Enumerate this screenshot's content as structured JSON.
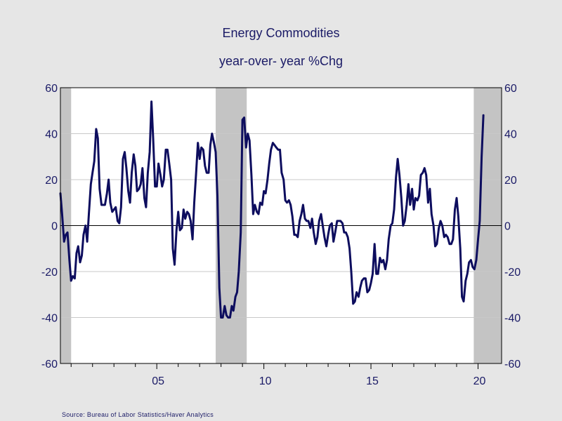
{
  "chart_data": {
    "type": "line",
    "title": "Energy Commodities",
    "subtitle": "year-over- year %Chg",
    "source": "Source:  Bureau of Labor Statistics/Haver Analytics",
    "xlabel": "",
    "ylabel": "",
    "ylim": [
      -60,
      60
    ],
    "xlim": [
      2000.5,
      2021.1
    ],
    "yticks": [
      60,
      40,
      20,
      0,
      -20,
      -40,
      -60
    ],
    "ytick_labels": [
      "60",
      "40",
      "20",
      "0",
      "-20",
      "-40",
      "-60"
    ],
    "xtick_labels": [
      {
        "x": 2005,
        "label": "05"
      },
      {
        "x": 2010,
        "label": "10"
      },
      {
        "x": 2015,
        "label": "15"
      },
      {
        "x": 2020,
        "label": "20"
      }
    ],
    "grid": true,
    "recessions": [
      [
        2000.5,
        2001.0
      ],
      [
        2007.75,
        2009.2
      ],
      [
        2019.8,
        2021.1
      ]
    ],
    "colors": {
      "line": "#0d0d5e",
      "recession": "#c4c4c4",
      "text": "#1a1a66",
      "grid": "#c8c8c8",
      "plot_bg": "#ffffff",
      "page_bg": "#e6e6e6"
    },
    "series": [
      {
        "name": "Energy Commodities",
        "points": [
          [
            2000.5,
            14
          ],
          [
            2000.58,
            5
          ],
          [
            2000.67,
            -7
          ],
          [
            2000.75,
            -4
          ],
          [
            2000.83,
            -3
          ],
          [
            2000.92,
            -15
          ],
          [
            2001.0,
            -24
          ],
          [
            2001.08,
            -22
          ],
          [
            2001.17,
            -23
          ],
          [
            2001.25,
            -12
          ],
          [
            2001.33,
            -9
          ],
          [
            2001.42,
            -16
          ],
          [
            2001.5,
            -13
          ],
          [
            2001.58,
            -4
          ],
          [
            2001.67,
            0
          ],
          [
            2001.75,
            -7
          ],
          [
            2001.83,
            5
          ],
          [
            2001.92,
            18
          ],
          [
            2002.0,
            23
          ],
          [
            2002.08,
            28
          ],
          [
            2002.17,
            42
          ],
          [
            2002.25,
            38
          ],
          [
            2002.33,
            16
          ],
          [
            2002.42,
            9
          ],
          [
            2002.5,
            9
          ],
          [
            2002.58,
            9
          ],
          [
            2002.67,
            14
          ],
          [
            2002.75,
            20
          ],
          [
            2002.83,
            10
          ],
          [
            2002.92,
            6
          ],
          [
            2003.0,
            7
          ],
          [
            2003.08,
            8
          ],
          [
            2003.17,
            2
          ],
          [
            2003.25,
            1
          ],
          [
            2003.33,
            8
          ],
          [
            2003.42,
            29
          ],
          [
            2003.5,
            32
          ],
          [
            2003.58,
            25
          ],
          [
            2003.67,
            15
          ],
          [
            2003.75,
            10
          ],
          [
            2003.83,
            23
          ],
          [
            2003.92,
            31
          ],
          [
            2004.0,
            26
          ],
          [
            2004.08,
            15
          ],
          [
            2004.17,
            16
          ],
          [
            2004.25,
            18
          ],
          [
            2004.33,
            25
          ],
          [
            2004.42,
            12
          ],
          [
            2004.5,
            8
          ],
          [
            2004.58,
            23
          ],
          [
            2004.67,
            32
          ],
          [
            2004.75,
            54
          ],
          [
            2004.83,
            38
          ],
          [
            2004.92,
            17
          ],
          [
            2005.0,
            17
          ],
          [
            2005.08,
            27
          ],
          [
            2005.17,
            22
          ],
          [
            2005.25,
            17
          ],
          [
            2005.33,
            20
          ],
          [
            2005.42,
            33
          ],
          [
            2005.5,
            33
          ],
          [
            2005.58,
            27
          ],
          [
            2005.67,
            20
          ],
          [
            2005.75,
            -10
          ],
          [
            2005.83,
            -17
          ],
          [
            2005.92,
            -2
          ],
          [
            2006.0,
            6
          ],
          [
            2006.08,
            -2
          ],
          [
            2006.17,
            -1
          ],
          [
            2006.25,
            7
          ],
          [
            2006.33,
            3
          ],
          [
            2006.42,
            6
          ],
          [
            2006.5,
            5
          ],
          [
            2006.58,
            2
          ],
          [
            2006.67,
            -6
          ],
          [
            2006.75,
            10
          ],
          [
            2006.83,
            22
          ],
          [
            2006.92,
            36
          ],
          [
            2007.0,
            29
          ],
          [
            2007.08,
            34
          ],
          [
            2007.17,
            33
          ],
          [
            2007.25,
            26
          ],
          [
            2007.33,
            23
          ],
          [
            2007.42,
            23
          ],
          [
            2007.5,
            35
          ],
          [
            2007.58,
            40
          ],
          [
            2007.67,
            36
          ],
          [
            2007.75,
            32
          ],
          [
            2007.83,
            13
          ],
          [
            2007.92,
            -27
          ],
          [
            2008.0,
            -40
          ],
          [
            2008.08,
            -40
          ],
          [
            2008.17,
            -35
          ],
          [
            2008.25,
            -39
          ],
          [
            2008.33,
            -40
          ],
          [
            2008.42,
            -40
          ],
          [
            2008.5,
            -35
          ],
          [
            2008.58,
            -37
          ],
          [
            2008.67,
            -31
          ],
          [
            2008.75,
            -29
          ],
          [
            2008.83,
            -20
          ],
          [
            2008.92,
            -3
          ],
          [
            2009.0,
            46
          ],
          [
            2009.08,
            47
          ],
          [
            2009.17,
            34
          ],
          [
            2009.25,
            40
          ],
          [
            2009.33,
            37
          ],
          [
            2009.42,
            22
          ],
          [
            2009.5,
            5
          ],
          [
            2009.58,
            9
          ],
          [
            2009.67,
            6
          ],
          [
            2009.75,
            5
          ],
          [
            2009.83,
            10
          ],
          [
            2009.92,
            9
          ],
          [
            2010.0,
            15
          ],
          [
            2010.08,
            14
          ],
          [
            2010.17,
            20
          ],
          [
            2010.25,
            27
          ],
          [
            2010.33,
            33
          ],
          [
            2010.42,
            36
          ],
          [
            2010.5,
            35
          ],
          [
            2010.58,
            34
          ],
          [
            2010.67,
            33
          ],
          [
            2010.75,
            33
          ],
          [
            2010.83,
            23
          ],
          [
            2010.92,
            20
          ],
          [
            2011.0,
            11
          ],
          [
            2011.08,
            10
          ],
          [
            2011.17,
            11
          ],
          [
            2011.25,
            9
          ],
          [
            2011.33,
            4
          ],
          [
            2011.42,
            -4
          ],
          [
            2011.5,
            -4
          ],
          [
            2011.58,
            -5
          ],
          [
            2011.67,
            2
          ],
          [
            2011.75,
            5
          ],
          [
            2011.83,
            9
          ],
          [
            2011.92,
            3
          ],
          [
            2012.0,
            2
          ],
          [
            2012.08,
            2
          ],
          [
            2012.17,
            -1
          ],
          [
            2012.25,
            3
          ],
          [
            2012.33,
            -3
          ],
          [
            2012.42,
            -8
          ],
          [
            2012.5,
            -5
          ],
          [
            2012.58,
            2
          ],
          [
            2012.67,
            5
          ],
          [
            2012.75,
            0
          ],
          [
            2012.83,
            -5
          ],
          [
            2012.92,
            -9
          ],
          [
            2013.0,
            -4
          ],
          [
            2013.08,
            0
          ],
          [
            2013.17,
            1
          ],
          [
            2013.25,
            -7
          ],
          [
            2013.33,
            -3
          ],
          [
            2013.42,
            2
          ],
          [
            2013.5,
            2
          ],
          [
            2013.58,
            2
          ],
          [
            2013.67,
            1
          ],
          [
            2013.75,
            -3
          ],
          [
            2013.83,
            -3
          ],
          [
            2013.92,
            -5
          ],
          [
            2014.0,
            -10
          ],
          [
            2014.08,
            -20
          ],
          [
            2014.17,
            -34
          ],
          [
            2014.25,
            -33
          ],
          [
            2014.33,
            -29
          ],
          [
            2014.42,
            -31
          ],
          [
            2014.5,
            -27
          ],
          [
            2014.58,
            -24
          ],
          [
            2014.67,
            -23
          ],
          [
            2014.75,
            -23
          ],
          [
            2014.83,
            -29
          ],
          [
            2014.92,
            -28
          ],
          [
            2015.0,
            -25
          ],
          [
            2015.08,
            -21
          ],
          [
            2015.17,
            -8
          ],
          [
            2015.25,
            -21
          ],
          [
            2015.33,
            -21
          ],
          [
            2015.42,
            -14
          ],
          [
            2015.5,
            -16
          ],
          [
            2015.58,
            -15
          ],
          [
            2015.67,
            -19
          ],
          [
            2015.75,
            -15
          ],
          [
            2015.83,
            -6
          ],
          [
            2015.92,
            0
          ],
          [
            2016.0,
            1
          ],
          [
            2016.08,
            7
          ],
          [
            2016.17,
            21
          ],
          [
            2016.25,
            29
          ],
          [
            2016.33,
            22
          ],
          [
            2016.42,
            12
          ],
          [
            2016.5,
            0
          ],
          [
            2016.58,
            2
          ],
          [
            2016.67,
            9
          ],
          [
            2016.75,
            18
          ],
          [
            2016.83,
            9
          ],
          [
            2016.92,
            16
          ],
          [
            2017.0,
            7
          ],
          [
            2017.08,
            12
          ],
          [
            2017.17,
            11
          ],
          [
            2017.25,
            13
          ],
          [
            2017.33,
            22
          ],
          [
            2017.42,
            23
          ],
          [
            2017.5,
            25
          ],
          [
            2017.58,
            22
          ],
          [
            2017.67,
            10
          ],
          [
            2017.75,
            16
          ],
          [
            2017.83,
            5
          ],
          [
            2017.92,
            0
          ],
          [
            2018.0,
            -9
          ],
          [
            2018.08,
            -8
          ],
          [
            2018.17,
            -1
          ],
          [
            2018.25,
            2
          ],
          [
            2018.33,
            0
          ],
          [
            2018.42,
            -5
          ],
          [
            2018.5,
            -4
          ],
          [
            2018.58,
            -5
          ],
          [
            2018.67,
            -8
          ],
          [
            2018.75,
            -8
          ],
          [
            2018.83,
            -6
          ],
          [
            2018.92,
            7
          ],
          [
            2019.0,
            12
          ],
          [
            2019.08,
            4
          ],
          [
            2019.17,
            -10
          ],
          [
            2019.25,
            -31
          ],
          [
            2019.33,
            -33
          ],
          [
            2019.42,
            -24
          ],
          [
            2019.5,
            -21
          ],
          [
            2019.58,
            -16
          ],
          [
            2019.67,
            -15
          ],
          [
            2019.75,
            -18
          ],
          [
            2019.83,
            -19
          ],
          [
            2019.92,
            -15
          ],
          [
            2020.0,
            -6
          ],
          [
            2020.08,
            2
          ],
          [
            2020.17,
            30
          ],
          [
            2020.25,
            48
          ]
        ]
      }
    ]
  }
}
